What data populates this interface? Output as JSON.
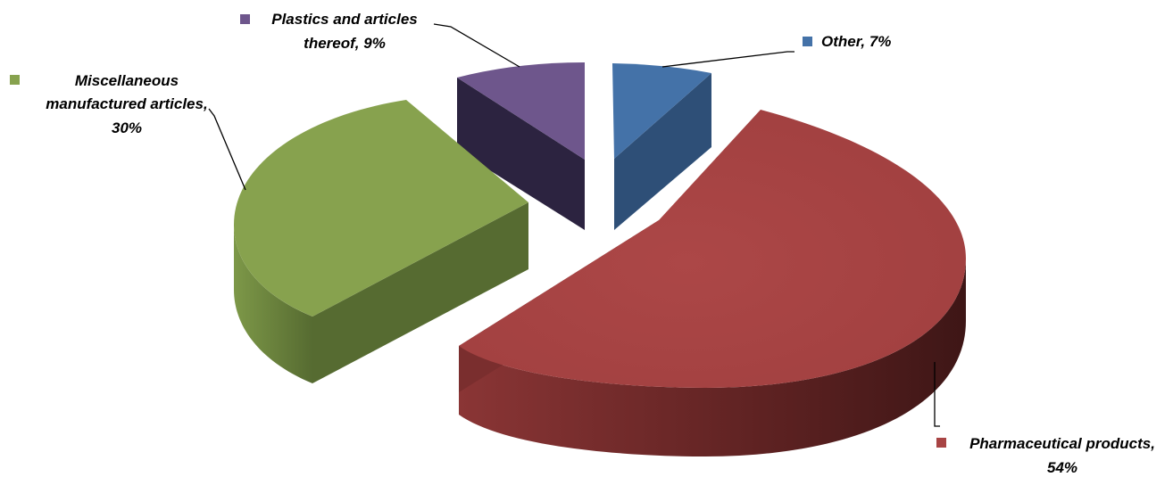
{
  "chart_data": {
    "type": "pie",
    "three_d": true,
    "exploded": true,
    "legend": "none",
    "slices": [
      {
        "name": "Other",
        "value": 7,
        "label_line1": "Other, 7%",
        "label_line2": "",
        "label_line3": "",
        "color": "#4472A8",
        "side_color": "#2E4F77"
      },
      {
        "name": "Pharmaceutical products",
        "value": 54,
        "label_line1": "Pharmaceutical products,",
        "label_line2": "54%",
        "label_line3": "",
        "color": "#A84444",
        "side_color": "#6E2A2A"
      },
      {
        "name": "Miscellaneous manufactured articles",
        "value": 30,
        "label_line1": "Miscellaneous",
        "label_line2": "manufactured articles,",
        "label_line3": "30%",
        "color": "#87A24E",
        "side_color": "#566B31"
      },
      {
        "name": "Plastics and articles thereof",
        "value": 9,
        "label_line1": "Plastics and articles",
        "label_line2": "thereof, 9%",
        "label_line3": "",
        "color": "#6E568C",
        "side_color": "#2C2340"
      }
    ]
  }
}
